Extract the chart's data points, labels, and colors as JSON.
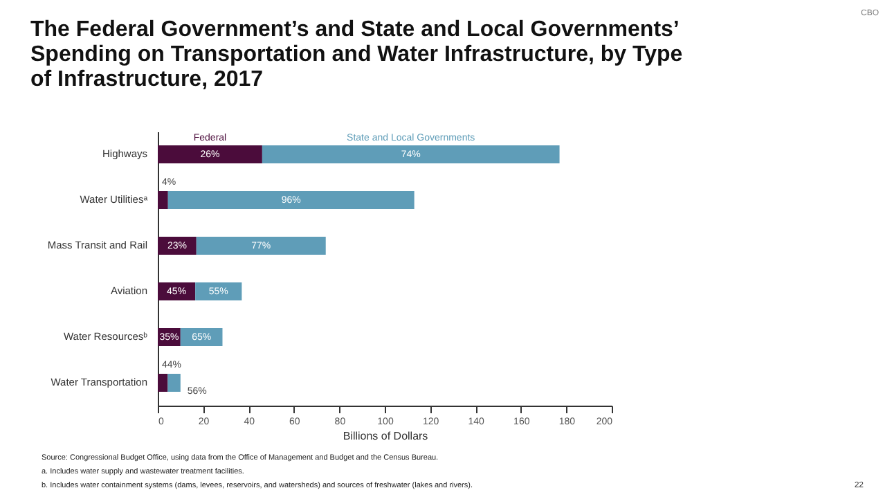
{
  "chart_data": {
    "type": "bar",
    "orientation": "horizontal",
    "stacked": true,
    "title": "The Federal Government’s and State and Local Governments’ Spending on Transportation and Water Infrastructure, by Type of Infrastructure, 2017",
    "xlabel": "Billions of Dollars",
    "categories": [
      "Highways",
      "Water Utilitiesᵃ",
      "Mass Transit and Rail",
      "Aviation",
      "Water Resourcesᵇ",
      "Water Transportation"
    ],
    "series": [
      {
        "name": "Federal",
        "color": "#4b0c3b",
        "values": [
          46,
          4.5,
          17,
          16.5,
          10,
          4.4
        ]
      },
      {
        "name": "State and Local Governments",
        "color": "#5f9db8",
        "values": [
          131,
          108.5,
          57,
          20.5,
          18.5,
          5.6
        ]
      }
    ],
    "xlim": [
      0,
      200
    ],
    "xticks": [
      0,
      20,
      40,
      60,
      80,
      100,
      120,
      140,
      160,
      180,
      200
    ],
    "grid": false,
    "legend": "top",
    "annotations": [
      "26%",
      "74%",
      "4%",
      "96%",
      "23%",
      "77%",
      "45%",
      "55%",
      "35%",
      "65%",
      "44%",
      "56%",
      "Source: Congressional Budget Office, using data from the Office of Management and Budget and the Census Bureau.",
      "a. Includes water supply and wastewater treatment facilities.",
      "b. Includes water containment systems (dams, levees, reservoirs, and watersheds) and sources of freshwater (lakes and rivers).",
      "22",
      "CBO"
    ]
  }
}
